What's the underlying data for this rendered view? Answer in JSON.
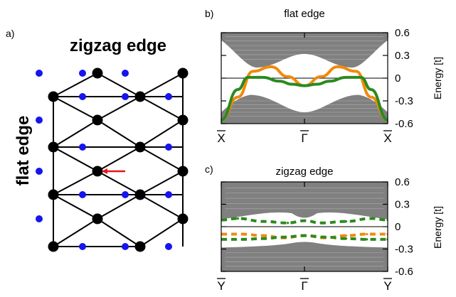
{
  "panel_a": {
    "label": "a)",
    "top_title": "zigzag edge",
    "side_title": "flat edge",
    "colors": {
      "lattice_site": "#000000",
      "dual_site": "#1515ee",
      "arrow": "#e8141c",
      "bond": "#000000"
    }
  },
  "chart_data": [
    {
      "type": "line",
      "panel_label": "b)",
      "title": "flat edge",
      "ylabel": "Energy [t]",
      "ylim": [
        -0.6,
        0.6
      ],
      "yticks": [
        -0.6,
        -0.3,
        0,
        0.3,
        0.6
      ],
      "ytick_labels": [
        "-0.6",
        "-0.3",
        "0",
        "0.3",
        "0.6"
      ],
      "xticks": [
        0,
        1,
        2
      ],
      "xtick_labels": [
        "X",
        "Γ",
        "X"
      ],
      "xtick_overline": true,
      "grid": false,
      "bulk_color": "#808080",
      "series": [
        {
          "color": "#f08a0c",
          "x": [
            0.0,
            0.2,
            0.38,
            0.6,
            0.8,
            1.0,
            1.2,
            1.4,
            1.62,
            1.8,
            2.0
          ],
          "y": [
            -0.55,
            -0.25,
            0.09,
            0.15,
            0.02,
            -0.1,
            0.02,
            0.15,
            0.09,
            -0.25,
            -0.55
          ]
        },
        {
          "color": "#2b8a1e",
          "x": [
            0.0,
            0.2,
            0.32,
            0.5,
            0.7,
            0.85,
            1.0,
            1.15,
            1.3,
            1.5,
            1.68,
            1.8,
            2.0
          ],
          "y": [
            -0.55,
            -0.15,
            0.01,
            0.01,
            -0.04,
            -0.08,
            -0.1,
            -0.08,
            -0.04,
            0.01,
            0.01,
            -0.15,
            -0.55
          ]
        }
      ]
    },
    {
      "type": "line",
      "panel_label": "c)",
      "title": "zigzag edge",
      "ylabel": "Energy [t]",
      "ylim": [
        -0.6,
        0.6
      ],
      "yticks": [
        -0.6,
        -0.3,
        0,
        0.3,
        0.6
      ],
      "ytick_labels": [
        "-0.6",
        "-0.3",
        "0",
        "0.3",
        "0.6"
      ],
      "xticks": [
        0,
        1,
        2
      ],
      "xtick_labels": [
        "Y",
        "Γ",
        "Y"
      ],
      "xtick_overline": true,
      "grid": false,
      "bulk_color": "#808080",
      "series": [
        {
          "color": "#2b8a1e",
          "dash": true,
          "x": [
            0.0,
            0.2,
            0.5,
            0.8,
            1.0,
            1.2,
            1.5,
            1.8,
            2.0
          ],
          "y": [
            0.09,
            0.11,
            0.07,
            0.05,
            0.08,
            0.05,
            0.07,
            0.11,
            0.09
          ]
        },
        {
          "color": "#f08a0c",
          "dash": true,
          "x": [
            0.0,
            0.25,
            0.5,
            0.75,
            1.0,
            1.25,
            1.5,
            1.75,
            2.0
          ],
          "y": [
            -0.1,
            -0.1,
            -0.12,
            -0.15,
            -0.12,
            -0.15,
            -0.12,
            -0.1,
            -0.1
          ]
        },
        {
          "color": "#2b8a1e",
          "dash": true,
          "x": [
            0.0,
            0.25,
            0.5,
            0.75,
            1.0,
            1.25,
            1.5,
            1.75,
            2.0
          ],
          "y": [
            -0.17,
            -0.17,
            -0.16,
            -0.14,
            -0.12,
            -0.14,
            -0.16,
            -0.17,
            -0.17
          ]
        }
      ]
    }
  ]
}
